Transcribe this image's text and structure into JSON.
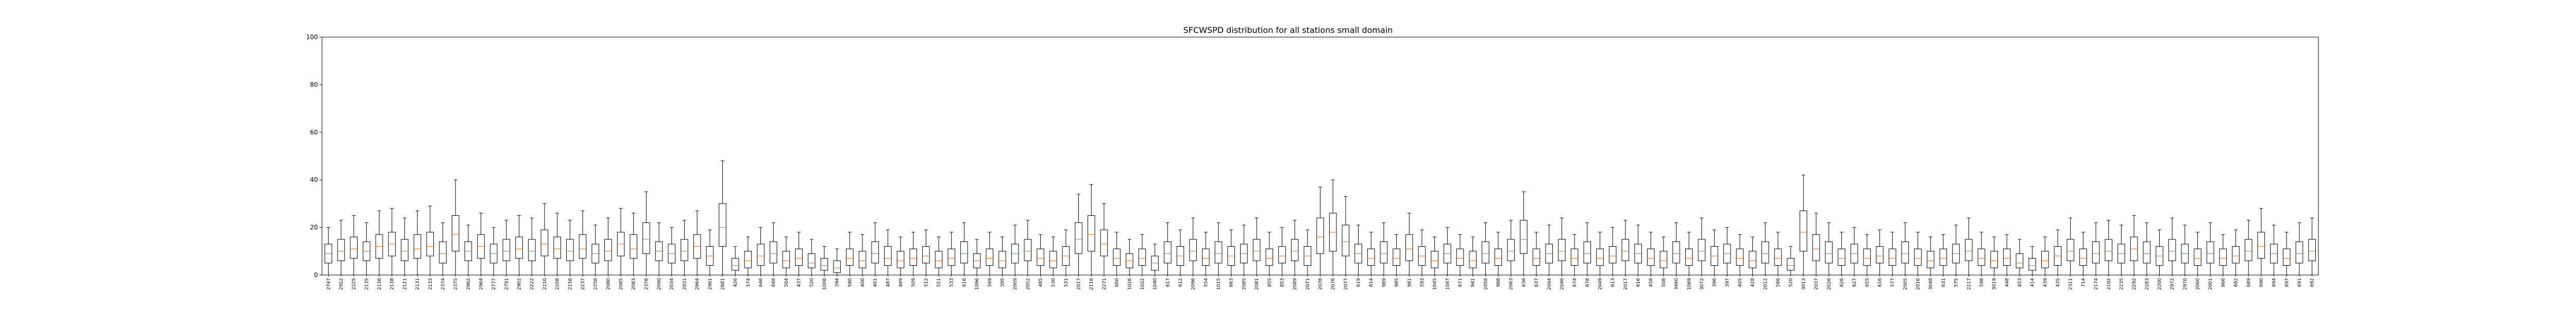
{
  "chart_data": {
    "type": "box",
    "title": "SFCWSPD distribution for all stations small domain",
    "xlabel": "",
    "ylabel": "",
    "ylim": [
      0,
      100
    ],
    "yticks": [
      0,
      20,
      40,
      60,
      80,
      100
    ],
    "grid": false,
    "legend": "none",
    "box_color": "#000000",
    "median_color": "#e07b39",
    "stations": [
      {
        "label": "2747",
        "q1": 5,
        "median": 9,
        "q3": 13,
        "whisker_high": 20
      },
      {
        "label": "2922",
        "q1": 6,
        "median": 10,
        "q3": 15,
        "whisker_high": 23
      },
      {
        "label": "2225",
        "q1": 7,
        "median": 11,
        "q3": 16,
        "whisker_high": 25
      },
      {
        "label": "2135",
        "q1": 6,
        "median": 10,
        "q3": 14,
        "whisker_high": 22
      },
      {
        "label": "2136",
        "q1": 7,
        "median": 12,
        "q3": 17,
        "whisker_high": 27
      },
      {
        "label": "2138",
        "q1": 8,
        "median": 13,
        "q3": 18,
        "whisker_high": 28
      },
      {
        "label": "2121",
        "q1": 6,
        "median": 10,
        "q3": 15,
        "whisker_high": 24
      },
      {
        "label": "2131",
        "q1": 7,
        "median": 11,
        "q3": 17,
        "whisker_high": 27
      },
      {
        "label": "2133",
        "q1": 8,
        "median": 12,
        "q3": 18,
        "whisker_high": 29
      },
      {
        "label": "2374",
        "q1": 5,
        "median": 9,
        "q3": 14,
        "whisker_high": 22
      },
      {
        "label": "2375",
        "q1": 10,
        "median": 17,
        "q3": 25,
        "whisker_high": 40
      },
      {
        "label": "2962",
        "q1": 6,
        "median": 10,
        "q3": 14,
        "whisker_high": 21
      },
      {
        "label": "2964",
        "q1": 7,
        "median": 12,
        "q3": 17,
        "whisker_high": 26
      },
      {
        "label": "2777",
        "q1": 5,
        "median": 9,
        "q3": 13,
        "whisker_high": 20
      },
      {
        "label": "2791",
        "q1": 6,
        "median": 10,
        "q3": 15,
        "whisker_high": 23
      },
      {
        "label": "2902",
        "q1": 7,
        "median": 11,
        "q3": 16,
        "whisker_high": 25
      },
      {
        "label": "2222",
        "q1": 6,
        "median": 10,
        "q3": 15,
        "whisker_high": 24
      },
      {
        "label": "2210",
        "q1": 8,
        "median": 13,
        "q3": 19,
        "whisker_high": 30
      },
      {
        "label": "2208",
        "q1": 7,
        "median": 11,
        "q3": 16,
        "whisker_high": 26
      },
      {
        "label": "2156",
        "q1": 6,
        "median": 10,
        "q3": 15,
        "whisker_high": 23
      },
      {
        "label": "2237",
        "q1": 7,
        "median": 11,
        "q3": 17,
        "whisker_high": 27
      },
      {
        "label": "2258",
        "q1": 5,
        "median": 9,
        "q3": 13,
        "whisker_high": 21
      },
      {
        "label": "2080",
        "q1": 6,
        "median": 10,
        "q3": 15,
        "whisker_high": 24
      },
      {
        "label": "2085",
        "q1": 8,
        "median": 13,
        "q3": 18,
        "whisker_high": 28
      },
      {
        "label": "2083",
        "q1": 7,
        "median": 11,
        "q3": 17,
        "whisker_high": 26
      },
      {
        "label": "2376",
        "q1": 9,
        "median": 15,
        "q3": 22,
        "whisker_high": 35
      },
      {
        "label": "2090",
        "q1": 6,
        "median": 10,
        "q3": 14,
        "whisker_high": 22
      },
      {
        "label": "2034",
        "q1": 5,
        "median": 9,
        "q3": 13,
        "whisker_high": 20
      },
      {
        "label": "2031",
        "q1": 6,
        "median": 10,
        "q3": 15,
        "whisker_high": 23
      },
      {
        "label": "2964",
        "q1": 7,
        "median": 12,
        "q3": 17,
        "whisker_high": 27
      },
      {
        "label": "2961",
        "q1": 4,
        "median": 8,
        "q3": 12,
        "whisker_high": 19
      },
      {
        "label": "2881",
        "q1": 12,
        "median": 20,
        "q3": 30,
        "whisker_high": 48
      },
      {
        "label": "426",
        "q1": 2,
        "median": 4,
        "q3": 7,
        "whisker_high": 12
      },
      {
        "label": "574",
        "q1": 3,
        "median": 6,
        "q3": 10,
        "whisker_high": 16
      },
      {
        "label": "646",
        "q1": 4,
        "median": 8,
        "q3": 13,
        "whisker_high": 20
      },
      {
        "label": "648",
        "q1": 5,
        "median": 9,
        "q3": 14,
        "whisker_high": 22
      },
      {
        "label": "504",
        "q1": 3,
        "median": 6,
        "q3": 10,
        "whisker_high": 16
      },
      {
        "label": "437",
        "q1": 4,
        "median": 7,
        "q3": 11,
        "whisker_high": 18
      },
      {
        "label": "520",
        "q1": 3,
        "median": 5,
        "q3": 9,
        "whisker_high": 15
      },
      {
        "label": "1006",
        "q1": 2,
        "median": 4,
        "q3": 7,
        "whisker_high": 12
      },
      {
        "label": "394",
        "q1": 1,
        "median": 3,
        "q3": 6,
        "whisker_high": 11
      },
      {
        "label": "580",
        "q1": 4,
        "median": 7,
        "q3": 11,
        "whisker_high": 18
      },
      {
        "label": "400",
        "q1": 3,
        "median": 6,
        "q3": 10,
        "whisker_high": 17
      },
      {
        "label": "401",
        "q1": 5,
        "median": 9,
        "q3": 14,
        "whisker_high": 22
      },
      {
        "label": "487",
        "q1": 4,
        "median": 7,
        "q3": 12,
        "whisker_high": 19
      },
      {
        "label": "469",
        "q1": 3,
        "median": 6,
        "q3": 10,
        "whisker_high": 16
      },
      {
        "label": "509",
        "q1": 4,
        "median": 7,
        "q3": 11,
        "whisker_high": 18
      },
      {
        "label": "512",
        "q1": 5,
        "median": 8,
        "q3": 12,
        "whisker_high": 19
      },
      {
        "label": "551",
        "q1": 3,
        "median": 6,
        "q3": 10,
        "whisker_high": 16
      },
      {
        "label": "533",
        "q1": 4,
        "median": 7,
        "q3": 11,
        "whisker_high": 18
      },
      {
        "label": "616",
        "q1": 5,
        "median": 9,
        "q3": 14,
        "whisker_high": 22
      },
      {
        "label": "1096",
        "q1": 3,
        "median": 6,
        "q3": 9,
        "whisker_high": 15
      },
      {
        "label": "569",
        "q1": 4,
        "median": 7,
        "q3": 11,
        "whisker_high": 18
      },
      {
        "label": "395",
        "q1": 3,
        "median": 6,
        "q3": 10,
        "whisker_high": 16
      },
      {
        "label": "2009",
        "q1": 5,
        "median": 9,
        "q3": 13,
        "whisker_high": 21
      },
      {
        "label": "2052",
        "q1": 6,
        "median": 10,
        "q3": 15,
        "whisker_high": 23
      },
      {
        "label": "485",
        "q1": 4,
        "median": 7,
        "q3": 11,
        "whisker_high": 17
      },
      {
        "label": "530",
        "q1": 3,
        "median": 6,
        "q3": 10,
        "whisker_high": 16
      },
      {
        "label": "531",
        "q1": 4,
        "median": 8,
        "q3": 12,
        "whisker_high": 19
      },
      {
        "label": "2017",
        "q1": 9,
        "median": 15,
        "q3": 22,
        "whisker_high": 34
      },
      {
        "label": "2116",
        "q1": 10,
        "median": 17,
        "q3": 25,
        "whisker_high": 38
      },
      {
        "label": "2271",
        "q1": 8,
        "median": 13,
        "q3": 19,
        "whisker_high": 30
      },
      {
        "label": "600",
        "q1": 4,
        "median": 7,
        "q3": 11,
        "whisker_high": 18
      },
      {
        "label": "1026",
        "q1": 3,
        "median": 6,
        "q3": 9,
        "whisker_high": 15
      },
      {
        "label": "1022",
        "q1": 4,
        "median": 7,
        "q3": 11,
        "whisker_high": 17
      },
      {
        "label": "1040",
        "q1": 2,
        "median": 5,
        "q3": 8,
        "whisker_high": 13
      },
      {
        "label": "617",
        "q1": 5,
        "median": 9,
        "q3": 14,
        "whisker_high": 22
      },
      {
        "label": "612",
        "q1": 4,
        "median": 8,
        "q3": 12,
        "whisker_high": 19
      },
      {
        "label": "2096",
        "q1": 6,
        "median": 10,
        "q3": 15,
        "whisker_high": 24
      },
      {
        "label": "554",
        "q1": 4,
        "median": 7,
        "q3": 11,
        "whisker_high": 18
      },
      {
        "label": "1015",
        "q1": 5,
        "median": 9,
        "q3": 14,
        "whisker_high": 22
      },
      {
        "label": "663",
        "q1": 4,
        "median": 8,
        "q3": 12,
        "whisker_high": 19
      },
      {
        "label": "2085",
        "q1": 5,
        "median": 9,
        "q3": 13,
        "whisker_high": 21
      },
      {
        "label": "2081",
        "q1": 6,
        "median": 10,
        "q3": 15,
        "whisker_high": 24
      },
      {
        "label": "855",
        "q1": 4,
        "median": 7,
        "q3": 11,
        "whisker_high": 18
      },
      {
        "label": "853",
        "q1": 5,
        "median": 8,
        "q3": 12,
        "whisker_high": 20
      },
      {
        "label": "2089",
        "q1": 6,
        "median": 10,
        "q3": 15,
        "whisker_high": 23
      },
      {
        "label": "2071",
        "q1": 4,
        "median": 8,
        "q3": 12,
        "whisker_high": 19
      },
      {
        "label": "2078",
        "q1": 9,
        "median": 16,
        "q3": 24,
        "whisker_high": 37
      },
      {
        "label": "2076",
        "q1": 10,
        "median": 18,
        "q3": 26,
        "whisker_high": 40
      },
      {
        "label": "2077",
        "q1": 8,
        "median": 14,
        "q3": 21,
        "whisker_high": 33
      },
      {
        "label": "619",
        "q1": 5,
        "median": 9,
        "q3": 13,
        "whisker_high": 21
      },
      {
        "label": "614",
        "q1": 4,
        "median": 7,
        "q3": 11,
        "whisker_high": 18
      },
      {
        "label": "989",
        "q1": 5,
        "median": 9,
        "q3": 14,
        "whisker_high": 22
      },
      {
        "label": "985",
        "q1": 4,
        "median": 7,
        "q3": 11,
        "whisker_high": 17
      },
      {
        "label": "981",
        "q1": 6,
        "median": 11,
        "q3": 17,
        "whisker_high": 26
      },
      {
        "label": "593",
        "q1": 4,
        "median": 8,
        "q3": 12,
        "whisker_high": 19
      },
      {
        "label": "1045",
        "q1": 3,
        "median": 6,
        "q3": 10,
        "whisker_high": 16
      },
      {
        "label": "1047",
        "q1": 5,
        "median": 9,
        "q3": 13,
        "whisker_high": 20
      },
      {
        "label": "671",
        "q1": 4,
        "median": 7,
        "q3": 11,
        "whisker_high": 17
      },
      {
        "label": "941",
        "q1": 3,
        "median": 6,
        "q3": 10,
        "whisker_high": 16
      },
      {
        "label": "2058",
        "q1": 5,
        "median": 9,
        "q3": 14,
        "whisker_high": 22
      },
      {
        "label": "988",
        "q1": 4,
        "median": 7,
        "q3": 11,
        "whisker_high": 18
      },
      {
        "label": "2063",
        "q1": 6,
        "median": 10,
        "q3": 15,
        "whisker_high": 23
      },
      {
        "label": "636",
        "q1": 9,
        "median": 15,
        "q3": 23,
        "whisker_high": 35
      },
      {
        "label": "637",
        "q1": 4,
        "median": 7,
        "q3": 11,
        "whisker_high": 18
      },
      {
        "label": "2044",
        "q1": 5,
        "median": 9,
        "q3": 13,
        "whisker_high": 21
      },
      {
        "label": "2046",
        "q1": 6,
        "median": 10,
        "q3": 15,
        "whisker_high": 24
      },
      {
        "label": "674",
        "q1": 4,
        "median": 7,
        "q3": 11,
        "whisker_high": 17
      },
      {
        "label": "678",
        "q1": 5,
        "median": 9,
        "q3": 14,
        "whisker_high": 22
      },
      {
        "label": "2049",
        "q1": 4,
        "median": 7,
        "q3": 11,
        "whisker_high": 18
      },
      {
        "label": "613",
        "q1": 5,
        "median": 8,
        "q3": 12,
        "whisker_high": 20
      },
      {
        "label": "2017",
        "q1": 6,
        "median": 10,
        "q3": 15,
        "whisker_high": 23
      },
      {
        "label": "616",
        "q1": 5,
        "median": 9,
        "q3": 13,
        "whisker_high": 21
      },
      {
        "label": "458",
        "q1": 4,
        "median": 7,
        "q3": 11,
        "whisker_high": 18
      },
      {
        "label": "508",
        "q1": 3,
        "median": 6,
        "q3": 10,
        "whisker_high": 16
      },
      {
        "label": "3460",
        "q1": 5,
        "median": 9,
        "q3": 14,
        "whisker_high": 22
      },
      {
        "label": "1069",
        "q1": 4,
        "median": 7,
        "q3": 11,
        "whisker_high": 18
      },
      {
        "label": "3072",
        "q1": 6,
        "median": 10,
        "q3": 15,
        "whisker_high": 24
      },
      {
        "label": "396",
        "q1": 4,
        "median": 8,
        "q3": 12,
        "whisker_high": 19
      },
      {
        "label": "397",
        "q1": 5,
        "median": 9,
        "q3": 13,
        "whisker_high": 20
      },
      {
        "label": "405",
        "q1": 4,
        "median": 7,
        "q3": 11,
        "whisker_high": 17
      },
      {
        "label": "428",
        "q1": 3,
        "median": 6,
        "q3": 10,
        "whisker_high": 16
      },
      {
        "label": "2012",
        "q1": 5,
        "median": 9,
        "q3": 14,
        "whisker_high": 22
      },
      {
        "label": "586",
        "q1": 4,
        "median": 7,
        "q3": 11,
        "whisker_high": 18
      },
      {
        "label": "520",
        "q1": 2,
        "median": 4,
        "q3": 7,
        "whisker_high": 12
      },
      {
        "label": "3013",
        "q1": 10,
        "median": 18,
        "q3": 27,
        "whisker_high": 42
      },
      {
        "label": "2037",
        "q1": 6,
        "median": 11,
        "q3": 17,
        "whisker_high": 26
      },
      {
        "label": "2026",
        "q1": 5,
        "median": 9,
        "q3": 14,
        "whisker_high": 22
      },
      {
        "label": "626",
        "q1": 4,
        "median": 7,
        "q3": 11,
        "whisker_high": 18
      },
      {
        "label": "627",
        "q1": 5,
        "median": 9,
        "q3": 13,
        "whisker_high": 20
      },
      {
        "label": "655",
        "q1": 4,
        "median": 7,
        "q3": 11,
        "whisker_high": 17
      },
      {
        "label": "616",
        "q1": 5,
        "median": 8,
        "q3": 12,
        "whisker_high": 19
      },
      {
        "label": "577",
        "q1": 4,
        "median": 7,
        "q3": 11,
        "whisker_high": 18
      },
      {
        "label": "2005",
        "q1": 5,
        "median": 9,
        "q3": 14,
        "whisker_high": 22
      },
      {
        "label": "2016",
        "q1": 4,
        "median": 7,
        "q3": 11,
        "whisker_high": 18
      },
      {
        "label": "3048",
        "q1": 3,
        "median": 6,
        "q3": 10,
        "whisker_high": 16
      },
      {
        "label": "631",
        "q1": 4,
        "median": 7,
        "q3": 11,
        "whisker_high": 17
      },
      {
        "label": "575",
        "q1": 5,
        "median": 9,
        "q3": 13,
        "whisker_high": 21
      },
      {
        "label": "2217",
        "q1": 6,
        "median": 10,
        "q3": 15,
        "whisker_high": 24
      },
      {
        "label": "598",
        "q1": 4,
        "median": 7,
        "q3": 11,
        "whisker_high": 18
      },
      {
        "label": "3019",
        "q1": 3,
        "median": 6,
        "q3": 10,
        "whisker_high": 16
      },
      {
        "label": "448",
        "q1": 4,
        "median": 7,
        "q3": 11,
        "whisker_high": 17
      },
      {
        "label": "453",
        "q1": 3,
        "median": 5,
        "q3": 9,
        "whisker_high": 15
      },
      {
        "label": "414",
        "q1": 2,
        "median": 4,
        "q3": 7,
        "whisker_high": 12
      },
      {
        "label": "439",
        "q1": 3,
        "median": 6,
        "q3": 10,
        "whisker_high": 16
      },
      {
        "label": "435",
        "q1": 4,
        "median": 8,
        "q3": 12,
        "whisker_high": 19
      },
      {
        "label": "2311",
        "q1": 6,
        "median": 10,
        "q3": 15,
        "whisker_high": 24
      },
      {
        "label": "714",
        "q1": 4,
        "median": 7,
        "q3": 11,
        "whisker_high": 18
      },
      {
        "label": "2174",
        "q1": 5,
        "median": 9,
        "q3": 14,
        "whisker_high": 22
      },
      {
        "label": "2192",
        "q1": 6,
        "median": 10,
        "q3": 15,
        "whisker_high": 23
      },
      {
        "label": "2235",
        "q1": 5,
        "median": 9,
        "q3": 13,
        "whisker_high": 21
      },
      {
        "label": "2292",
        "q1": 6,
        "median": 11,
        "q3": 16,
        "whisker_high": 25
      },
      {
        "label": "2283",
        "q1": 5,
        "median": 9,
        "q3": 14,
        "whisker_high": 22
      },
      {
        "label": "2200",
        "q1": 4,
        "median": 8,
        "q3": 12,
        "whisker_high": 19
      },
      {
        "label": "2972",
        "q1": 6,
        "median": 10,
        "q3": 15,
        "whisker_high": 24
      },
      {
        "label": "2970",
        "q1": 5,
        "median": 9,
        "q3": 13,
        "whisker_high": 21
      },
      {
        "label": "2060",
        "q1": 4,
        "median": 7,
        "q3": 11,
        "whisker_high": 18
      },
      {
        "label": "2001",
        "q1": 5,
        "median": 9,
        "q3": 14,
        "whisker_high": 22
      },
      {
        "label": "666",
        "q1": 4,
        "median": 7,
        "q3": 11,
        "whisker_high": 17
      },
      {
        "label": "682",
        "q1": 5,
        "median": 8,
        "q3": 12,
        "whisker_high": 19
      },
      {
        "label": "689",
        "q1": 6,
        "median": 10,
        "q3": 15,
        "whisker_high": 23
      },
      {
        "label": "690",
        "q1": 7,
        "median": 12,
        "q3": 18,
        "whisker_high": 28
      },
      {
        "label": "694",
        "q1": 5,
        "median": 9,
        "q3": 13,
        "whisker_high": 21
      },
      {
        "label": "697",
        "q1": 4,
        "median": 7,
        "q3": 11,
        "whisker_high": 18
      },
      {
        "label": "691",
        "q1": 5,
        "median": 9,
        "q3": 14,
        "whisker_high": 22
      },
      {
        "label": "692",
        "q1": 6,
        "median": 10,
        "q3": 15,
        "whisker_high": 24
      }
    ]
  }
}
